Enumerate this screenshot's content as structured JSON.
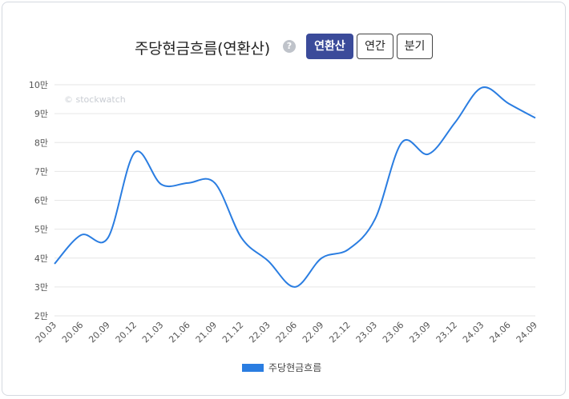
{
  "header": {
    "title": "주당현금흐름(연환산)",
    "help_icon": "question-circle-icon",
    "help_glyph": "?",
    "buttons": [
      {
        "label": "연환산",
        "active": true
      },
      {
        "label": "연간",
        "active": false
      },
      {
        "label": "분기",
        "active": false
      }
    ]
  },
  "colors": {
    "series": "#2a7de1",
    "active_button": "#3b4b9a",
    "grid": "#e6e6e6"
  },
  "chart_data": {
    "type": "line",
    "watermark": "© stockwatch",
    "x": [
      "20.03",
      "20.06",
      "20.09",
      "20.12",
      "21.03",
      "21.06",
      "21.09",
      "21.12",
      "22.03",
      "22.06",
      "22.09",
      "22.12",
      "23.03",
      "23.06",
      "23.09",
      "23.12",
      "24.03",
      "24.06",
      "24.09"
    ],
    "series": [
      {
        "name": "주당현금흐름",
        "values": [
          38000,
          48000,
          47000,
          76500,
          65500,
          66000,
          66000,
          47000,
          39000,
          30000,
          40000,
          43000,
          53500,
          80000,
          76000,
          87000,
          99000,
          93500,
          88500
        ]
      }
    ],
    "ylim": [
      20000,
      100000
    ],
    "yticks": [
      20000,
      30000,
      40000,
      50000,
      60000,
      70000,
      80000,
      90000,
      100000
    ],
    "ytick_labels": [
      "2만",
      "3만",
      "4만",
      "5만",
      "6만",
      "7만",
      "8만",
      "9만",
      "10만"
    ],
    "grid": true,
    "legend": "bottom-center"
  }
}
